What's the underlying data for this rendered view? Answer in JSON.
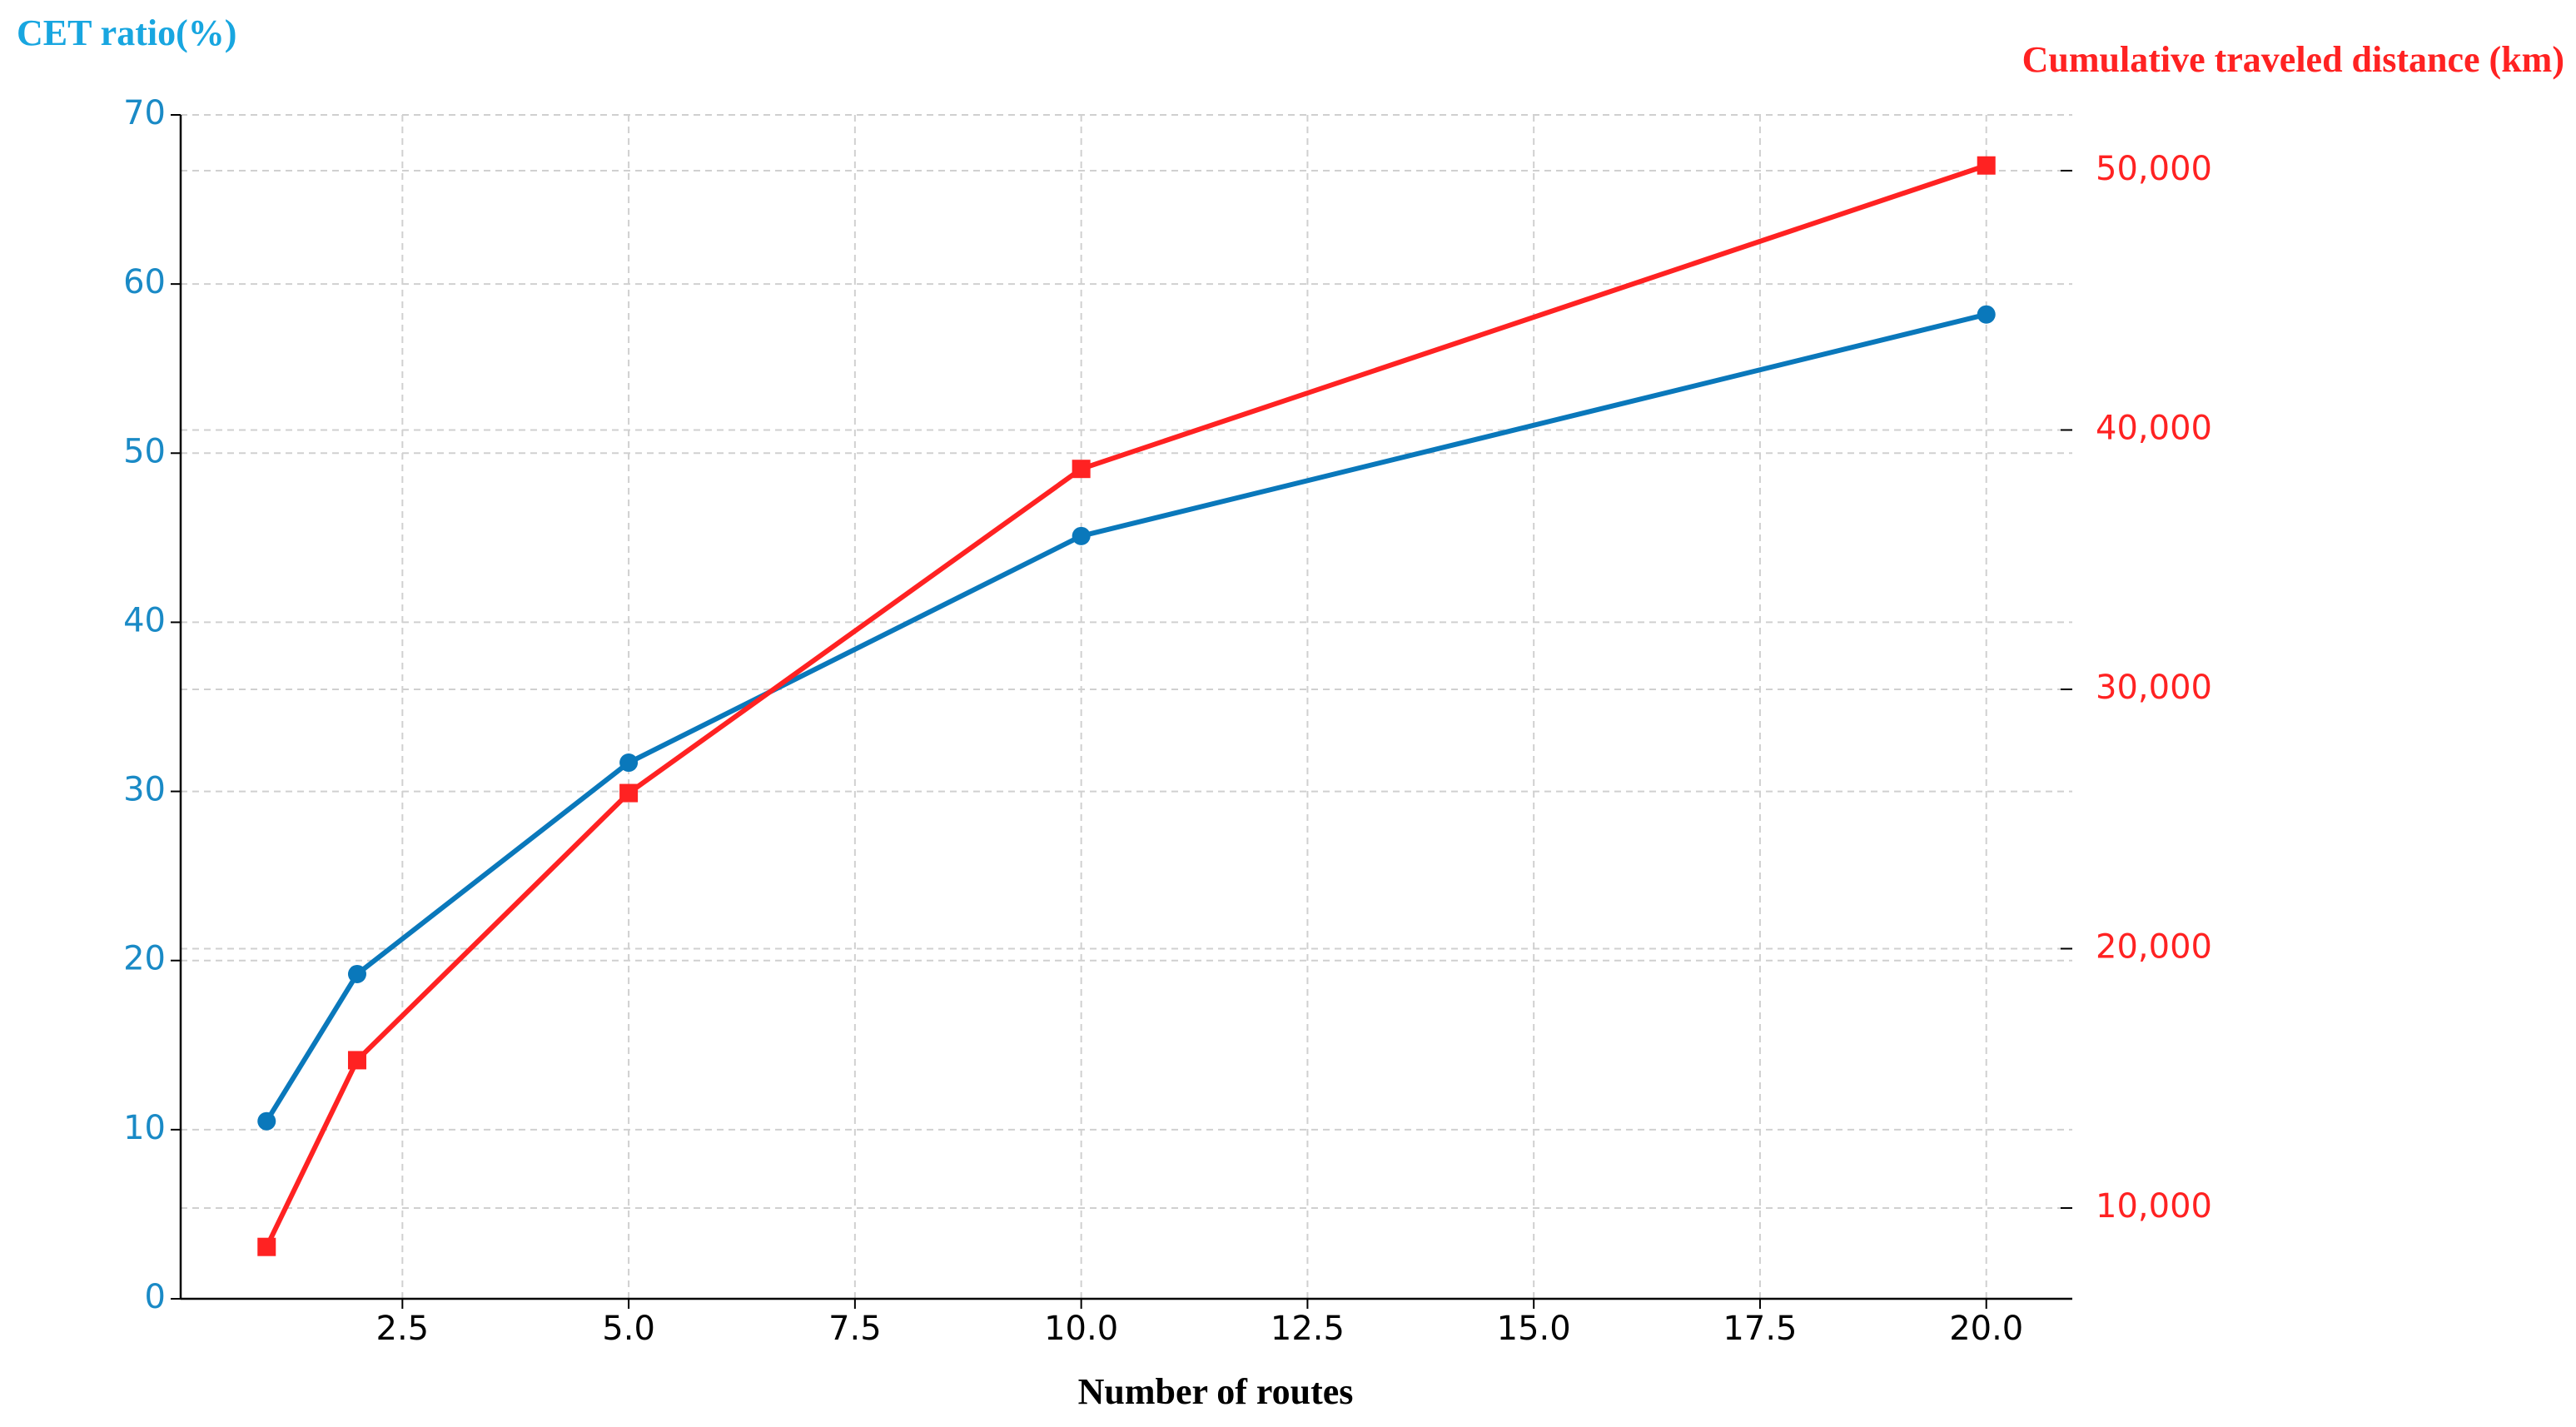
{
  "chart_data": {
    "type": "line",
    "y_label": "CET ratio(%)",
    "y2_label": "Cumulative traveled distance (km)",
    "x_label": "Number of routes",
    "x": [
      1,
      2,
      5,
      10,
      20
    ],
    "series": [
      {
        "color": "#0a78bb",
        "marker": "circle",
        "values": [
          10.5,
          19.2,
          31.7,
          45.1,
          58.2
        ]
      },
      {
        "color": "#ff2222",
        "marker": "square",
        "axis": "y2",
        "values": [
          8500,
          15700,
          26000,
          38500,
          50200
        ]
      }
    ],
    "xlim": [
      0.05,
      20.95
    ],
    "xticks": [
      2.5,
      {
        "value": 5,
        "label": "5.0"
      },
      7.5,
      {
        "value": 10,
        "label": "10.0"
      },
      12.5,
      {
        "value": 15,
        "label": "15.0"
      },
      17.5,
      {
        "value": 20,
        "label": "20.0"
      }
    ],
    "ylim": [
      0,
      70
    ],
    "yticks": [
      0,
      10,
      20,
      30,
      40,
      50,
      60,
      70
    ],
    "y2lim": [
      6500,
      52150
    ],
    "y2ticks": [
      {
        "value": 10000,
        "label": "10,000"
      },
      {
        "value": 20000,
        "label": "20,000"
      },
      {
        "value": 30000,
        "label": "30,000"
      },
      {
        "value": 40000,
        "label": "40,000"
      },
      {
        "value": 50000,
        "label": "50,000"
      }
    ],
    "grid": true,
    "y_color": "#1a8ac6",
    "y2_color": "#ff2222",
    "y_label_color": "#18a6e0"
  }
}
